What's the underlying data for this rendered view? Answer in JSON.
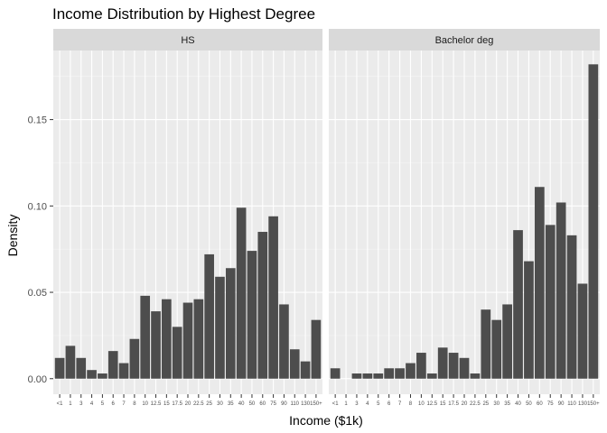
{
  "chart_data": {
    "type": "bar",
    "title": "Income Distribution by Highest Degree",
    "xlabel": "Income ($1k)",
    "ylabel": "Density",
    "ylim": [
      -0.009,
      0.19
    ],
    "yticks": [
      0.0,
      0.05,
      0.1,
      0.15
    ],
    "ytick_labels": [
      "0.00",
      "0.05",
      "0.10",
      "0.15"
    ],
    "categories": [
      "<1",
      "1",
      "3",
      "4",
      "5",
      "6",
      "7",
      "8",
      "10",
      "12.5",
      "15",
      "17.5",
      "20",
      "22.5",
      "25",
      "30",
      "35",
      "40",
      "50",
      "60",
      "75",
      "90",
      "110",
      "130",
      "150+"
    ],
    "panels": [
      {
        "name": "HS",
        "values": [
          0.012,
          0.019,
          0.012,
          0.005,
          0.003,
          0.016,
          0.009,
          0.023,
          0.048,
          0.039,
          0.046,
          0.03,
          0.044,
          0.046,
          0.072,
          0.059,
          0.064,
          0.099,
          0.074,
          0.085,
          0.094,
          0.043,
          0.017,
          0.01,
          0.034
        ]
      },
      {
        "name": "Bachelor deg",
        "values": [
          0.006,
          0.0,
          0.003,
          0.003,
          0.003,
          0.006,
          0.006,
          0.009,
          0.015,
          0.003,
          0.018,
          0.015,
          0.012,
          0.003,
          0.04,
          0.034,
          0.043,
          0.086,
          0.068,
          0.111,
          0.089,
          0.102,
          0.083,
          0.055,
          0.182
        ]
      }
    ],
    "grid": true,
    "legend": "none"
  },
  "colors": {
    "panel_bg": "#ebebeb",
    "grid_major": "#ffffff",
    "grid_minor": "#f5f5f5",
    "strip_bg": "#d9d9d9",
    "bar": "#4d4d4d",
    "axis_text": "#4d4d4d",
    "title_text": "#000000"
  }
}
